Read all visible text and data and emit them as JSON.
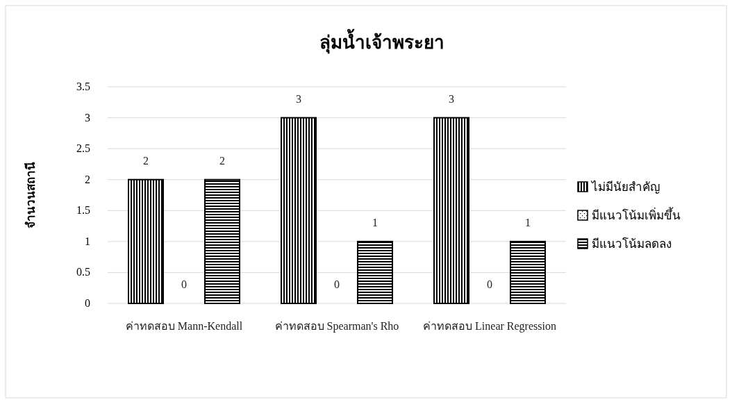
{
  "chart_data": {
    "type": "bar",
    "title": "ลุ่มน้ำเจ้าพระยา",
    "ylabel": "จำนวนสถานี",
    "categories": [
      "ค่าทดสอบ Mann-Kendall",
      "ค่าทดสอบ Spearman's Rho",
      "ค่าทดสอบ Linear Regression"
    ],
    "series": [
      {
        "name": "ไม่มีนัยสำคัญ",
        "color": "#000000",
        "values": [
          2,
          3,
          3
        ]
      },
      {
        "name": "มีแนวโน้มเพิ่มขึ้น",
        "color": "#000000",
        "values": [
          0,
          0,
          0
        ]
      },
      {
        "name": "มีแนวโน้มลดลง",
        "color": "#000000",
        "values": [
          2,
          1,
          1
        ]
      }
    ],
    "ylim": [
      0,
      3.5
    ],
    "yticks": [
      0,
      0.5,
      1,
      1.5,
      2,
      2.5,
      3,
      3.5
    ],
    "grid": "y",
    "legend": "right",
    "data_labels": true
  }
}
